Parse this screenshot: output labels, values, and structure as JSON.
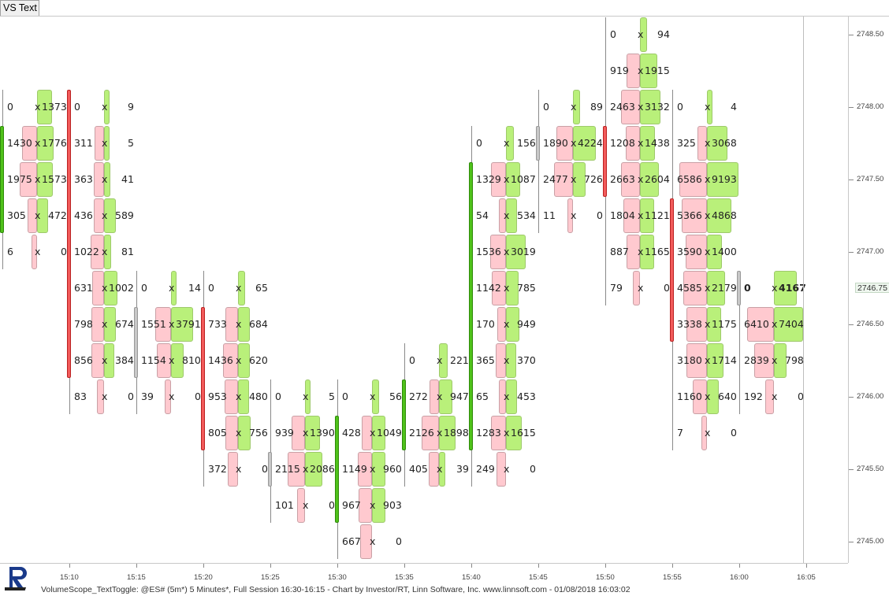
{
  "tab": {
    "label": "VS Text"
  },
  "price_axis": {
    "labels": [
      "2748.50",
      "2748.00",
      "2747.50",
      "2747.00",
      "2746.50",
      "2746.00",
      "2745.50",
      "2745.00"
    ],
    "current_price": "2746.75"
  },
  "time_axis": {
    "labels": [
      "15:10",
      "15:15",
      "15:20",
      "15:25",
      "15:30",
      "15:35",
      "15:40",
      "15:45",
      "15:50",
      "15:55",
      "16:00",
      "16:05"
    ]
  },
  "footer": {
    "text": "VolumeScope_TextToggle: @ES# (5m*) 5 Minutes*, Full Session 16:30-16:15 - Chart by Investor/RT, Linn Software, Inc. www.linnsoft.com - 01/08/2018 16:03:02"
  },
  "colors": {
    "buy": "#b9f07a",
    "sell": "#ffc9cf",
    "up_bar": "#4fc21a",
    "down_bar": "#f25b5b",
    "neutral_bar": "#c8c8c8"
  },
  "chart_data": {
    "type": "table",
    "title": "",
    "tick_size": 0.25,
    "columns": [
      {
        "time": "15:05",
        "open": 2747.75,
        "close": 2747.25,
        "dir": "up",
        "rows": [
          [
            2748.0,
            0,
            1373
          ],
          [
            2747.75,
            1430,
            1776
          ],
          [
            2747.5,
            1975,
            1573
          ],
          [
            2747.25,
            305,
            472
          ],
          [
            2747.0,
            6,
            0
          ]
        ]
      },
      {
        "time": "15:10",
        "open": 2748.0,
        "close": 2746.25,
        "dir": "down",
        "rows": [
          [
            2748.0,
            0,
            9
          ],
          [
            2747.75,
            311,
            5
          ],
          [
            2747.5,
            363,
            41
          ],
          [
            2747.25,
            436,
            589
          ],
          [
            2747.0,
            1022,
            81
          ],
          [
            2746.75,
            631,
            1002
          ],
          [
            2746.5,
            798,
            674
          ],
          [
            2746.25,
            856,
            384
          ],
          [
            2746.0,
            83,
            0
          ]
        ]
      },
      {
        "time": "15:15",
        "open": 2746.25,
        "close": 2746.5,
        "dir": "neutral",
        "rows": [
          [
            2746.75,
            0,
            14
          ],
          [
            2746.5,
            1551,
            3791
          ],
          [
            2746.25,
            1154,
            810
          ],
          [
            2746.0,
            39,
            0
          ]
        ]
      },
      {
        "time": "15:20",
        "open": 2746.5,
        "close": 2745.75,
        "dir": "down",
        "rows": [
          [
            2746.75,
            0,
            65
          ],
          [
            2746.5,
            733,
            684
          ],
          [
            2746.25,
            1436,
            620
          ],
          [
            2746.0,
            953,
            480
          ],
          [
            2745.75,
            805,
            756
          ],
          [
            2745.5,
            372,
            0
          ]
        ]
      },
      {
        "time": "15:25",
        "open": 2745.5,
        "close": 2745.5,
        "dir": "neutral",
        "rows": [
          [
            2746.0,
            0,
            5
          ],
          [
            2745.75,
            939,
            1390
          ],
          [
            2745.5,
            2115,
            2086
          ],
          [
            2745.25,
            101,
            0
          ]
        ]
      },
      {
        "time": "15:30",
        "open": 2745.25,
        "close": 2745.75,
        "dir": "up",
        "rows": [
          [
            2746.0,
            0,
            56
          ],
          [
            2745.75,
            428,
            1049
          ],
          [
            2745.5,
            1149,
            960
          ],
          [
            2745.25,
            967,
            903
          ],
          [
            2745.0,
            667,
            0
          ]
        ]
      },
      {
        "time": "15:35",
        "open": 2745.75,
        "close": 2746.0,
        "dir": "up",
        "rows": [
          [
            2746.25,
            0,
            221
          ],
          [
            2746.0,
            272,
            947
          ],
          [
            2745.75,
            2126,
            1898
          ],
          [
            2745.5,
            405,
            39
          ]
        ]
      },
      {
        "time": "15:40",
        "open": 2745.75,
        "close": 2747.5,
        "dir": "up",
        "rows": [
          [
            2747.75,
            0,
            156
          ],
          [
            2747.5,
            1329,
            1087
          ],
          [
            2747.25,
            54,
            534
          ],
          [
            2747.0,
            1536,
            3019
          ],
          [
            2746.75,
            1142,
            785
          ],
          [
            2746.5,
            170,
            949
          ],
          [
            2746.25,
            365,
            370
          ],
          [
            2746.0,
            65,
            453
          ],
          [
            2745.75,
            1283,
            1615
          ],
          [
            2745.5,
            249,
            0
          ]
        ]
      },
      {
        "time": "15:45",
        "open": 2747.75,
        "close": 2747.75,
        "dir": "neutral",
        "rows": [
          [
            2748.0,
            0,
            89
          ],
          [
            2747.75,
            1890,
            4224
          ],
          [
            2747.5,
            2477,
            726
          ],
          [
            2747.25,
            11,
            0
          ]
        ]
      },
      {
        "time": "15:50",
        "open": 2747.75,
        "close": 2747.5,
        "dir": "down",
        "rows": [
          [
            2748.5,
            0,
            94
          ],
          [
            2748.25,
            919,
            1915
          ],
          [
            2748.0,
            2463,
            3132
          ],
          [
            2747.75,
            1208,
            1438
          ],
          [
            2747.5,
            2663,
            2604
          ],
          [
            2747.25,
            1804,
            1121
          ],
          [
            2747.0,
            887,
            1165
          ],
          [
            2746.75,
            79,
            0
          ]
        ]
      },
      {
        "time": "15:55",
        "open": 2747.25,
        "close": 2746.5,
        "dir": "down",
        "rows": [
          [
            2748.0,
            0,
            4
          ],
          [
            2747.75,
            325,
            3068
          ],
          [
            2747.5,
            6586,
            9193
          ],
          [
            2747.25,
            5366,
            4868
          ],
          [
            2747.0,
            3590,
            1400
          ],
          [
            2746.75,
            4585,
            2179
          ],
          [
            2746.5,
            3338,
            1175
          ],
          [
            2746.25,
            3180,
            1714
          ],
          [
            2746.0,
            1160,
            640
          ],
          [
            2745.75,
            7,
            0
          ]
        ]
      },
      {
        "time": "16:00",
        "open": 2746.75,
        "close": 2746.75,
        "dir": "neutral",
        "rows": [
          [
            2746.75,
            0,
            4167
          ],
          [
            2746.5,
            6410,
            7404
          ],
          [
            2746.25,
            2839,
            798
          ],
          [
            2746.0,
            192,
            0
          ]
        ]
      }
    ]
  }
}
